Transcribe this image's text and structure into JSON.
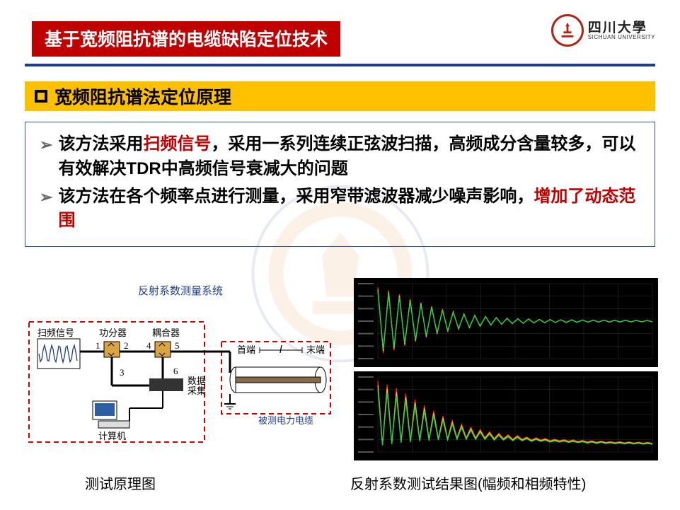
{
  "title": "基于宽频阻抗谱的电缆缺陷定位技术",
  "university": {
    "cn": "四川大學",
    "en": "SICHUAN UNIVERSITY"
  },
  "section": "宽频阻抗谱法定位原理",
  "bullets": [
    {
      "parts": [
        {
          "t": "该方法采用",
          "c": "k"
        },
        {
          "t": "扫频信号",
          "c": "r"
        },
        {
          "t": "，采用一系列连续正弦波扫描，高频成分含量较多，可以有效解决TDR中高频信号衰减大的问题",
          "c": "k"
        }
      ]
    },
    {
      "parts": [
        {
          "t": "该方法在各个频率点进行测量，采用窄带滤波器减少噪声影响，",
          "c": "k"
        },
        {
          "t": "增加了动态范围",
          "c": "r"
        }
      ]
    }
  ],
  "diagram": {
    "title": "反射系数测量系统",
    "caption": "测试原理图",
    "labels": {
      "sweep": "扫频信号",
      "splitter": "功分器",
      "coupler": "耦合器",
      "daq": "数据\n采集",
      "computer": "计算机",
      "head": "首端",
      "tail": "末端",
      "cable": "被测电力电缆",
      "len": "l"
    },
    "nums": [
      "1",
      "2",
      "3",
      "4",
      "5",
      "6"
    ],
    "colors": {
      "dash": "#d00000",
      "stroke": "#000000",
      "wave": "#1f3c88",
      "pc_body": "#2e5fa3",
      "daq_fill": "#333333"
    }
  },
  "charts": {
    "caption": "反射系数测试结果图(幅频和相频特性)",
    "bg": "#000000",
    "grid": "#333333",
    "series_colors": [
      "#ff2a2a",
      "#ffcc00",
      "#00e04a"
    ],
    "top": {
      "ylim": [
        -1,
        1
      ],
      "points": [
        0.9,
        -0.85,
        0.82,
        -0.78,
        0.72,
        -0.66,
        0.6,
        -0.55,
        0.5,
        -0.44,
        0.4,
        -0.35,
        0.32,
        -0.28,
        0.26,
        -0.22,
        0.2,
        -0.18,
        0.16,
        -0.14,
        0.13,
        -0.11,
        0.1,
        -0.09,
        0.08,
        -0.07,
        0.07,
        -0.06,
        0.06,
        -0.05,
        0.05,
        -0.045,
        0.045,
        -0.04,
        0.04,
        -0.038,
        0.036,
        -0.034,
        0.033,
        -0.03,
        0.03,
        -0.028,
        0.028,
        -0.025,
        0.025,
        -0.024,
        0.024,
        -0.022,
        0.022,
        -0.02,
        0.02,
        -0.02
      ]
    },
    "bottom": {
      "ylim": [
        0,
        1
      ],
      "points": [
        0.95,
        0.1,
        0.9,
        0.12,
        0.85,
        0.14,
        0.78,
        0.15,
        0.7,
        0.16,
        0.62,
        0.17,
        0.55,
        0.18,
        0.48,
        0.18,
        0.42,
        0.19,
        0.37,
        0.19,
        0.33,
        0.19,
        0.3,
        0.19,
        0.27,
        0.18,
        0.25,
        0.18,
        0.23,
        0.17,
        0.22,
        0.17,
        0.2,
        0.16,
        0.19,
        0.16,
        0.18,
        0.15,
        0.17,
        0.15,
        0.165,
        0.145,
        0.16,
        0.14,
        0.155,
        0.135,
        0.15,
        0.13,
        0.145,
        0.128,
        0.14,
        0.125,
        0.138,
        0.122,
        0.135,
        0.12,
        0.132,
        0.118,
        0.13,
        0.115
      ]
    }
  }
}
